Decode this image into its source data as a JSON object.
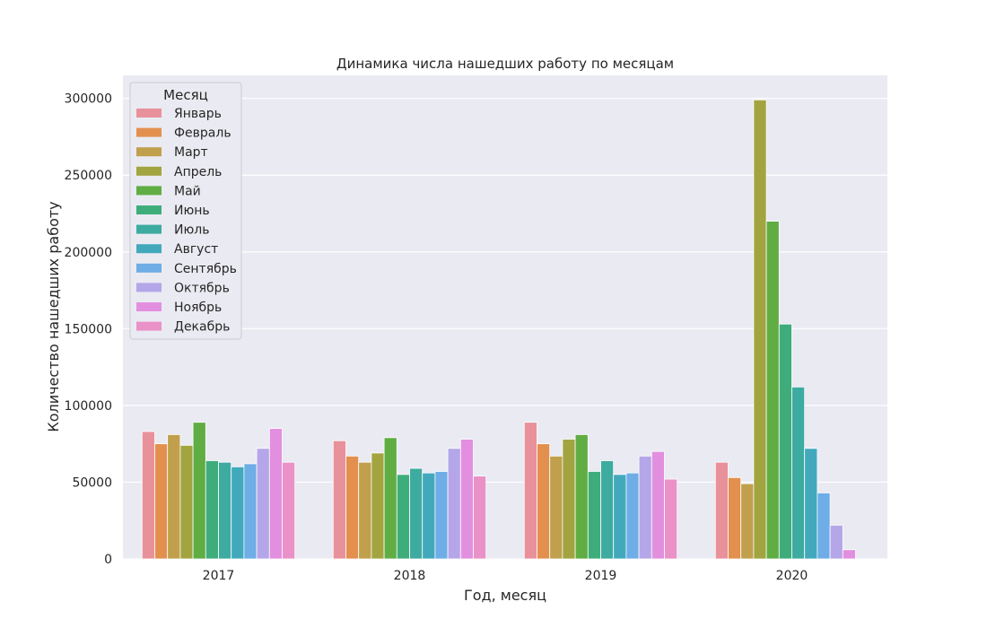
{
  "chart_data": {
    "type": "bar",
    "title": "Динамика числа нашедших работу по месяцам",
    "xlabel": "Год, месяц",
    "ylabel": "Количество нашедших работу",
    "categories": [
      "2017",
      "2018",
      "2019",
      "2020"
    ],
    "ylim": [
      0,
      315000
    ],
    "yticks": [
      0,
      50000,
      100000,
      150000,
      200000,
      250000,
      300000
    ],
    "grid": true,
    "legend": {
      "title": "Месяц",
      "placement": "top-left"
    },
    "series": [
      {
        "name": "Январь",
        "color": "#e8919b",
        "values": [
          83000,
          77000,
          89000,
          63000
        ]
      },
      {
        "name": "Февраль",
        "color": "#e38f4e",
        "values": [
          75000,
          67000,
          75000,
          53000
        ]
      },
      {
        "name": "Март",
        "color": "#c0a04d",
        "values": [
          81000,
          63000,
          67000,
          49000
        ]
      },
      {
        "name": "Апрель",
        "color": "#a2a440",
        "values": [
          74000,
          69000,
          78000,
          299000
        ]
      },
      {
        "name": "Май",
        "color": "#60ad43",
        "values": [
          89000,
          79000,
          81000,
          220000
        ]
      },
      {
        "name": "Июнь",
        "color": "#3fad7b",
        "values": [
          64000,
          55000,
          57000,
          153000
        ]
      },
      {
        "name": "Июль",
        "color": "#3eaba0",
        "values": [
          63000,
          59000,
          64000,
          112000
        ]
      },
      {
        "name": "Август",
        "color": "#42a9bd",
        "values": [
          60000,
          56000,
          55000,
          72000
        ]
      },
      {
        "name": "Сентябрь",
        "color": "#6eade6",
        "values": [
          62000,
          57000,
          56000,
          43000
        ]
      },
      {
        "name": "Октябрь",
        "color": "#b4a6e8",
        "values": [
          72000,
          72000,
          67000,
          22000
        ]
      },
      {
        "name": "Ноябрь",
        "color": "#e28fe0",
        "values": [
          85000,
          78000,
          70000,
          6000
        ]
      },
      {
        "name": "Декабрь",
        "color": "#ea92c8",
        "values": [
          63000,
          54000,
          52000,
          null
        ]
      }
    ]
  }
}
